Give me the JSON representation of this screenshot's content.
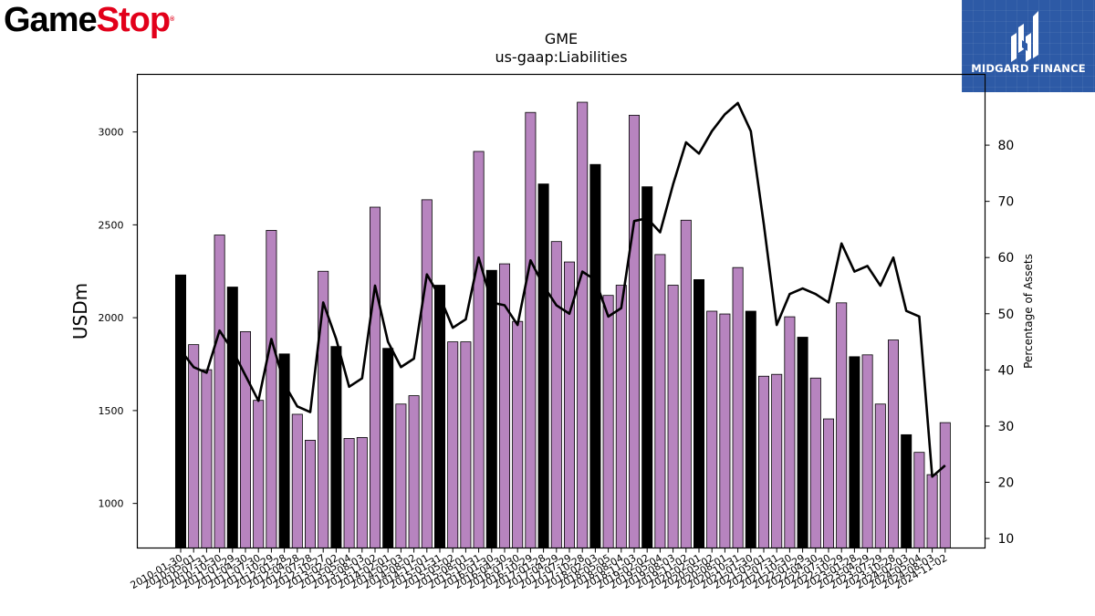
{
  "branding": {
    "logo_part1": "Game",
    "logo_part2": "Stop",
    "logo_reg": "®",
    "badge_text": "MIDGARD FINANCE",
    "logo_colors": {
      "game": "#000000",
      "stop": "#e2001a",
      "badge_bg": "#2d5aa6"
    }
  },
  "chart_data": {
    "type": "bar",
    "title": "GME",
    "subtitle": "us-gaap:Liabilities",
    "ylabel": "USDm",
    "y2label": "Percentage of Assets",
    "ylim": [
      760,
      3310
    ],
    "y2lim": [
      8.3,
      92.6
    ],
    "yticks": [
      1000,
      1500,
      2000,
      2500,
      3000
    ],
    "y2ticks": [
      10,
      20,
      30,
      40,
      50,
      60,
      70,
      80
    ],
    "bar_colors": {
      "annual": "#000000",
      "quarterly": "#b784bf"
    },
    "line_color": "#000000",
    "grid": false,
    "categories": [
      "2010-01-30",
      "2010-05-01",
      "2010-07-31",
      "2010-10-30",
      "2011-01-29",
      "2011-04-30",
      "2011-07-30",
      "2011-10-29",
      "2012-01-28",
      "2012-04-28",
      "2012-07-28",
      "2012-10-27",
      "2013-02-02",
      "2013-05-04",
      "2013-08-03",
      "2013-11-02",
      "2014-02-01",
      "2014-05-03",
      "2014-08-02",
      "2014-11-01",
      "2015-01-31",
      "2015-05-02",
      "2015-08-01",
      "2015-10-31",
      "2016-01-30",
      "2016-04-30",
      "2016-07-30",
      "2016-10-29",
      "2017-01-28",
      "2017-04-29",
      "2017-07-29",
      "2017-10-28",
      "2018-02-03",
      "2018-05-05",
      "2018-08-04",
      "2018-11-03",
      "2019-02-02",
      "2019-05-04",
      "2019-08-03",
      "2019-11-02",
      "2020-02-01",
      "2020-05-02",
      "2020-08-01",
      "2020-10-31",
      "2021-01-30",
      "2021-05-01",
      "2021-07-31",
      "2021-10-30",
      "2022-01-29",
      "2022-04-30",
      "2022-07-30",
      "2022-10-29",
      "2023-01-28",
      "2023-04-29",
      "2023-07-29",
      "2023-10-28",
      "2024-02-03",
      "2024-05-04",
      "2024-08-03",
      "2024-11-02"
    ],
    "tick_labels": [
      "2010-01-30",
      "2010-05-01",
      "2010-07-31",
      "2010-10-30",
      "2011-01-29",
      "2011-04-30",
      "2011-07-30",
      "2011-10-29",
      "2012-01-28",
      "2012-04-28",
      "2012-07-28",
      "2012-10-27",
      "2013-02-02",
      "2013-05-04",
      "2013-08-03",
      "2013-11-02",
      "2014-02-01",
      "2014-05-03",
      "2014-08-02",
      "2014-11-01",
      "2015-01-31",
      "2015-05-02",
      "2015-08-01",
      "2015-10-31",
      "2016-01-30",
      "2016-04-30",
      "2016-07-30",
      "2016-10-29",
      "2017-01-28",
      "2017-04-29",
      "2017-07-29",
      "2017-10-28",
      "2018-02-03",
      "2018-05-05",
      "2018-08-04",
      "2018-11-03",
      "2019-02-02",
      "2019-05-04",
      "2019-08-03",
      "2019-11-02",
      "2020-02-01",
      "2020-05-02",
      "2020-08-01",
      "2020-10-31",
      "2021-01-30",
      "2021-05-01",
      "2021-07-31",
      "2021-10-30",
      "2022-01-29",
      "2022-04-30",
      "2022-07-30",
      "2022-10-29",
      "2023-01-28",
      "2023-04-29",
      "2023-07-29",
      "2023-10-28",
      "2024-02-03",
      "2024-05-04",
      "2024-08-03",
      "2024-11-02"
    ],
    "series": [
      {
        "kind": "bar",
        "values": [
          2230,
          1855,
          1720,
          2445,
          2165,
          1925,
          1555,
          2470,
          1805,
          1480,
          1340,
          2250,
          1845,
          1350,
          1355,
          2595,
          1835,
          1535,
          1580,
          2635,
          2175,
          1870,
          1870,
          2895,
          2255,
          2290,
          1980,
          3105,
          2720,
          2410,
          2300,
          3160,
          2825,
          2120,
          2175,
          3090,
          2705,
          2340,
          2175,
          2525,
          2205,
          2035,
          2020,
          2270,
          2035,
          1685,
          1695,
          2005,
          1895,
          1675,
          1455,
          2080,
          1790,
          1800,
          1535,
          1880,
          1370,
          1275,
          1155,
          1435
        ],
        "annual": [
          true,
          false,
          false,
          false,
          true,
          false,
          false,
          false,
          true,
          false,
          false,
          false,
          true,
          false,
          false,
          false,
          true,
          false,
          false,
          false,
          true,
          false,
          false,
          false,
          true,
          false,
          false,
          false,
          true,
          false,
          false,
          false,
          true,
          false,
          false,
          false,
          true,
          false,
          false,
          false,
          true,
          false,
          false,
          false,
          true,
          false,
          false,
          false,
          true,
          false,
          false,
          false,
          true,
          false,
          false,
          false,
          true,
          false,
          false,
          false
        ]
      },
      {
        "kind": "line",
        "axis": "right",
        "values": [
          43.5,
          40.5,
          39.5,
          47.0,
          43.5,
          39.0,
          34.5,
          45.5,
          37.5,
          33.5,
          32.5,
          52.0,
          45.5,
          37.0,
          38.5,
          55.0,
          45.0,
          40.5,
          42.0,
          57.0,
          53.0,
          47.5,
          49.0,
          60.0,
          52.0,
          51.5,
          48.0,
          59.5,
          55.0,
          51.5,
          50.0,
          57.5,
          56.0,
          49.5,
          51.0,
          66.5,
          67.0,
          64.5,
          73.0,
          80.5,
          78.5,
          82.5,
          85.5,
          87.5,
          82.5,
          66.0,
          48.0,
          53.5,
          54.5,
          53.5,
          52.0,
          62.5,
          57.5,
          58.5,
          55.0,
          60.0,
          50.5,
          49.5,
          21.0,
          23.0
        ]
      }
    ]
  }
}
